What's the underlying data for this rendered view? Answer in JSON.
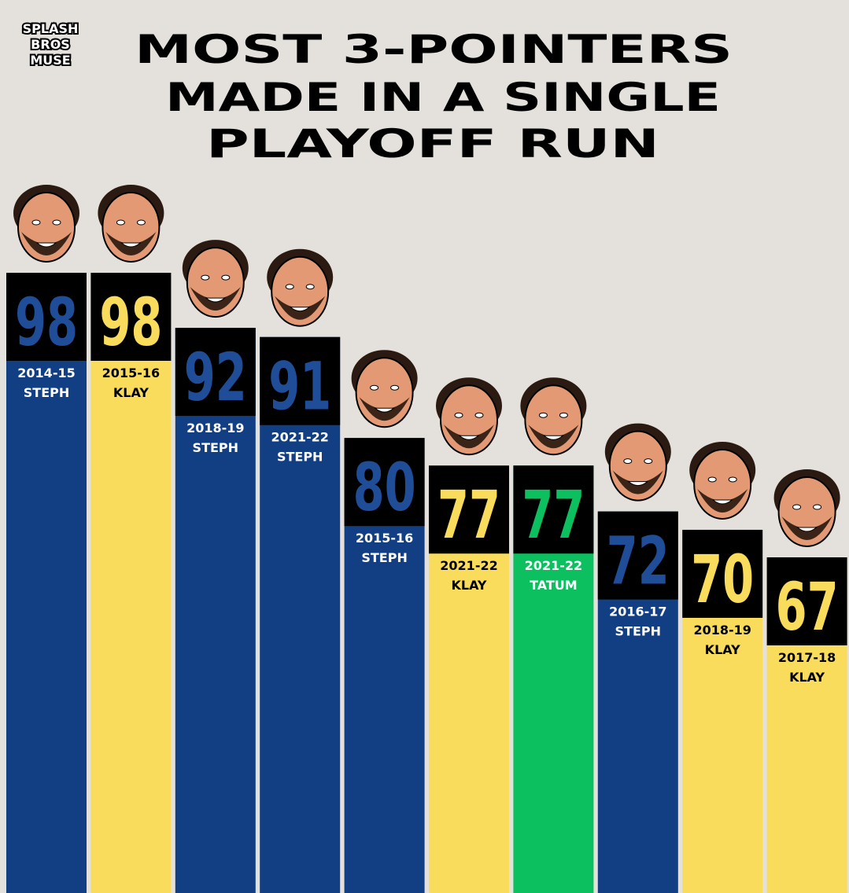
{
  "logo": [
    "SPLASH",
    "BROS",
    "MUSE"
  ],
  "chart_data": {
    "type": "bar",
    "title": [
      "MOST 3-POINTERS",
      "MADE IN A SINGLE",
      "PLAYOFF RUN"
    ],
    "categories": [
      "2014-15",
      "2015-16",
      "2018-19",
      "2021-22",
      "2015-16",
      "2021-22",
      "2021-22",
      "2016-17",
      "2018-19",
      "2017-18"
    ],
    "players": [
      "STEPH",
      "KLAY",
      "STEPH",
      "STEPH",
      "STEPH",
      "KLAY",
      "TATUM",
      "STEPH",
      "KLAY",
      "KLAY"
    ],
    "values": [
      98,
      98,
      92,
      91,
      80,
      77,
      77,
      72,
      70,
      67
    ],
    "colors": [
      "#123f83",
      "#f9dc5c",
      "#123f83",
      "#123f83",
      "#123f83",
      "#f9dc5c",
      "#0cbf5f",
      "#123f83",
      "#f9dc5c",
      "#f9dc5c"
    ]
  }
}
